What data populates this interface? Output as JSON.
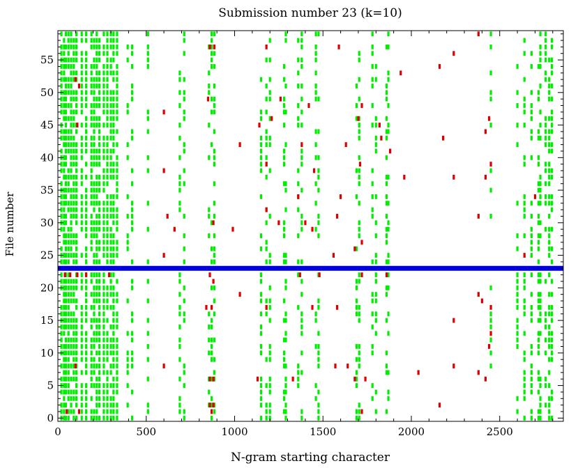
{
  "chart_data": {
    "type": "heatmap",
    "title": "Submission number 23 (k=10)",
    "xlabel": "N-gram starting character",
    "ylabel": "File number",
    "xlim": [
      0,
      2860
    ],
    "ylim": [
      -0.5,
      59.5
    ],
    "x_ticks": [
      0,
      500,
      1000,
      1500,
      2000,
      2500
    ],
    "y_ticks": [
      0,
      5,
      10,
      15,
      20,
      25,
      30,
      35,
      40,
      45,
      50,
      55
    ],
    "grid": false,
    "highlight_row": 23,
    "colors": {
      "match": "#00ee00",
      "partial": "#dd0000",
      "highlight": "#0000dd",
      "axis": "#000000"
    },
    "green_columns": [
      20,
      35,
      45,
      60,
      75,
      90,
      105,
      135,
      160,
      190,
      205,
      220,
      235,
      260,
      280,
      300,
      315,
      335,
      395,
      420,
      510,
      690,
      715,
      855,
      870,
      885,
      1150,
      1180,
      1200,
      1280,
      1290,
      1360,
      1380,
      1460,
      1475,
      1690,
      1705,
      1780,
      1800,
      1860,
      1870,
      2450,
      2600,
      2640,
      2680,
      2720,
      2730,
      2760,
      2780,
      2795
    ],
    "red_cells": [
      {
        "x": 860,
        "y": 57
      },
      {
        "x": 885,
        "y": 57
      },
      {
        "x": 1180,
        "y": 57
      },
      {
        "x": 1590,
        "y": 57
      },
      {
        "x": 2380,
        "y": 59
      },
      {
        "x": 2240,
        "y": 56
      },
      {
        "x": 1940,
        "y": 53
      },
      {
        "x": 2160,
        "y": 54
      },
      {
        "x": 100,
        "y": 52
      },
      {
        "x": 120,
        "y": 51
      },
      {
        "x": 850,
        "y": 49
      },
      {
        "x": 1260,
        "y": 49
      },
      {
        "x": 1420,
        "y": 48
      },
      {
        "x": 1700,
        "y": 46
      },
      {
        "x": 1210,
        "y": 46
      },
      {
        "x": 2440,
        "y": 46
      },
      {
        "x": 110,
        "y": 45
      },
      {
        "x": 1140,
        "y": 45
      },
      {
        "x": 1820,
        "y": 45
      },
      {
        "x": 2420,
        "y": 44
      },
      {
        "x": 600,
        "y": 47
      },
      {
        "x": 1720,
        "y": 48
      },
      {
        "x": 1830,
        "y": 43
      },
      {
        "x": 2180,
        "y": 43
      },
      {
        "x": 1030,
        "y": 42
      },
      {
        "x": 1380,
        "y": 42
      },
      {
        "x": 1630,
        "y": 42
      },
      {
        "x": 1880,
        "y": 41
      },
      {
        "x": 1180,
        "y": 39
      },
      {
        "x": 1450,
        "y": 38
      },
      {
        "x": 1710,
        "y": 39
      },
      {
        "x": 2450,
        "y": 39
      },
      {
        "x": 600,
        "y": 38
      },
      {
        "x": 1960,
        "y": 37
      },
      {
        "x": 2240,
        "y": 37
      },
      {
        "x": 2420,
        "y": 37
      },
      {
        "x": 1360,
        "y": 34
      },
      {
        "x": 1600,
        "y": 34
      },
      {
        "x": 2700,
        "y": 34
      },
      {
        "x": 1180,
        "y": 32
      },
      {
        "x": 620,
        "y": 31
      },
      {
        "x": 880,
        "y": 30
      },
      {
        "x": 1250,
        "y": 30
      },
      {
        "x": 1400,
        "y": 30
      },
      {
        "x": 1580,
        "y": 31
      },
      {
        "x": 2380,
        "y": 31
      },
      {
        "x": 660,
        "y": 29
      },
      {
        "x": 990,
        "y": 29
      },
      {
        "x": 1440,
        "y": 29
      },
      {
        "x": 1720,
        "y": 27
      },
      {
        "x": 1680,
        "y": 26
      },
      {
        "x": 1560,
        "y": 25
      },
      {
        "x": 600,
        "y": 25
      },
      {
        "x": 2640,
        "y": 25
      },
      {
        "x": 40,
        "y": 22
      },
      {
        "x": 70,
        "y": 22
      },
      {
        "x": 110,
        "y": 22
      },
      {
        "x": 160,
        "y": 22
      },
      {
        "x": 290,
        "y": 22
      },
      {
        "x": 860,
        "y": 22
      },
      {
        "x": 1370,
        "y": 22
      },
      {
        "x": 1480,
        "y": 22
      },
      {
        "x": 1720,
        "y": 22
      },
      {
        "x": 1860,
        "y": 22
      },
      {
        "x": 880,
        "y": 21
      },
      {
        "x": 1030,
        "y": 19
      },
      {
        "x": 2380,
        "y": 19
      },
      {
        "x": 2400,
        "y": 18
      },
      {
        "x": 840,
        "y": 17
      },
      {
        "x": 870,
        "y": 17
      },
      {
        "x": 1180,
        "y": 17
      },
      {
        "x": 1440,
        "y": 17
      },
      {
        "x": 1580,
        "y": 17
      },
      {
        "x": 2450,
        "y": 17
      },
      {
        "x": 2240,
        "y": 15
      },
      {
        "x": 2450,
        "y": 13
      },
      {
        "x": 2440,
        "y": 11
      },
      {
        "x": 100,
        "y": 8
      },
      {
        "x": 600,
        "y": 8
      },
      {
        "x": 1570,
        "y": 8
      },
      {
        "x": 1640,
        "y": 8
      },
      {
        "x": 2240,
        "y": 8
      },
      {
        "x": 2040,
        "y": 7
      },
      {
        "x": 2380,
        "y": 7
      },
      {
        "x": 860,
        "y": 6
      },
      {
        "x": 880,
        "y": 6
      },
      {
        "x": 1130,
        "y": 6
      },
      {
        "x": 1330,
        "y": 6
      },
      {
        "x": 1680,
        "y": 6
      },
      {
        "x": 1740,
        "y": 6
      },
      {
        "x": 2420,
        "y": 6
      },
      {
        "x": 2160,
        "y": 2
      },
      {
        "x": 860,
        "y": 2
      },
      {
        "x": 870,
        "y": 1
      },
      {
        "x": 50,
        "y": 1
      },
      {
        "x": 120,
        "y": 1
      },
      {
        "x": 880,
        "y": 2
      },
      {
        "x": 1720,
        "y": 1
      }
    ]
  }
}
